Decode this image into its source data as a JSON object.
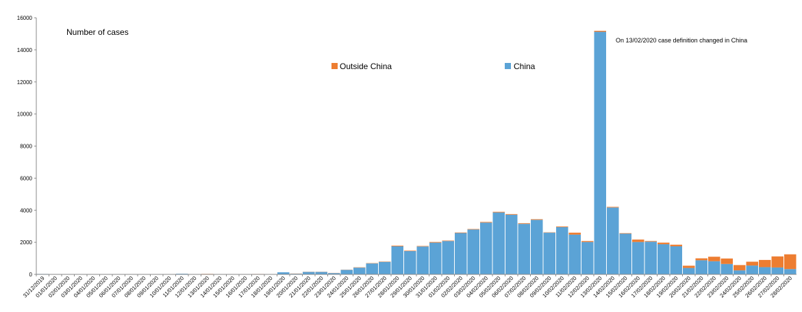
{
  "chart_data": {
    "type": "bar",
    "stacked": true,
    "ylabel": "Number of cases",
    "ylim": [
      0,
      16000
    ],
    "yticks": [
      0,
      2000,
      4000,
      6000,
      8000,
      10000,
      12000,
      14000,
      16000
    ],
    "annotation": "On 13/02/2020 case definition changed in China",
    "legend": [
      {
        "name": "Outside China",
        "color": "#ED7D31"
      },
      {
        "name": "China",
        "color": "#5BA3D6"
      }
    ],
    "categories": [
      "31/12/2019",
      "01/01/2020",
      "02/01/2020",
      "03/01/2020",
      "04/01/2020",
      "05/01/2020",
      "06/01/2020",
      "07/01/2020",
      "08/01/2020",
      "09/01/2020",
      "10/01/2020",
      "11/01/2020",
      "12/01/2020",
      "13/01/2020",
      "14/01/2020",
      "15/01/2020",
      "16/01/2020",
      "17/01/2020",
      "18/01/2020",
      "19/01/2020",
      "20/01/2020",
      "21/01/2020",
      "22/01/2020",
      "23/01/2020",
      "24/01/2020",
      "25/01/2020",
      "26/01/2020",
      "27/01/2020",
      "28/01/2020",
      "29/01/2020",
      "30/01/2020",
      "31/01/2020",
      "01/02/2020",
      "02/02/2020",
      "03/02/2020",
      "04/02/2020",
      "05/02/2020",
      "06/02/2020",
      "07/02/2020",
      "08/02/2020",
      "09/02/2020",
      "10/02/2020",
      "11/02/2020",
      "12/02/2020",
      "13/02/2020",
      "14/02/2020",
      "15/02/2020",
      "16/02/2020",
      "17/02/2020",
      "18/02/2020",
      "19/02/2020",
      "20/02/2020",
      "21/02/2020",
      "22/02/2020",
      "23/02/2020",
      "24/02/2020",
      "25/02/2020",
      "26/02/2020",
      "27/02/2020",
      "28/02/2020"
    ],
    "series": [
      {
        "name": "China",
        "color": "#5BA3D6",
        "values": [
          27,
          0,
          0,
          0,
          0,
          0,
          0,
          0,
          0,
          0,
          0,
          40,
          0,
          20,
          0,
          10,
          0,
          15,
          20,
          130,
          40,
          150,
          150,
          80,
          280,
          420,
          680,
          780,
          1750,
          1450,
          1740,
          1980,
          2080,
          2580,
          2800,
          3230,
          3860,
          3720,
          3150,
          3400,
          2600,
          2950,
          2480,
          2020,
          15130,
          4170,
          2540,
          2020,
          2040,
          1880,
          1750,
          400,
          880,
          820,
          650,
          250,
          550,
          450,
          430,
          330
        ]
      },
      {
        "name": "Outside China",
        "color": "#ED7D31",
        "values": [
          0,
          0,
          0,
          0,
          0,
          0,
          0,
          0,
          0,
          0,
          0,
          0,
          0,
          10,
          0,
          10,
          0,
          10,
          0,
          0,
          10,
          10,
          10,
          10,
          10,
          20,
          20,
          20,
          40,
          30,
          30,
          40,
          30,
          30,
          30,
          40,
          40,
          40,
          40,
          40,
          20,
          40,
          120,
          60,
          60,
          40,
          30,
          150,
          40,
          100,
          100,
          140,
          120,
          280,
          340,
          330,
          240,
          450,
          690,
          920
        ]
      }
    ]
  }
}
